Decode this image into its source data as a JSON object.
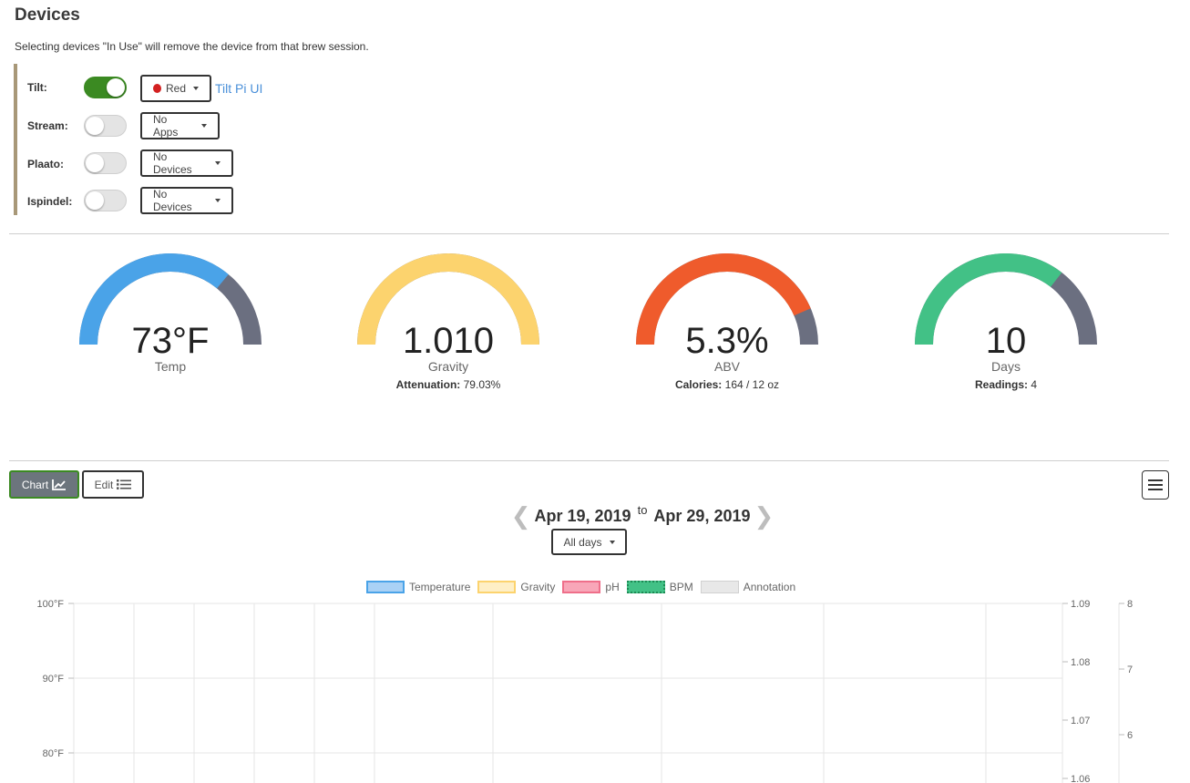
{
  "header": {
    "title": "Devices",
    "subtitle": "Selecting devices \"In Use\" will remove the device from that brew session."
  },
  "devices": [
    {
      "label": "Tilt:",
      "on": true,
      "dropdown": "Red",
      "link": "Tilt Pi UI"
    },
    {
      "label": "Stream:",
      "on": false,
      "dropdown": "No Apps"
    },
    {
      "label": "Plaato:",
      "on": false,
      "dropdown": "No Devices"
    },
    {
      "label": "Ispindel:",
      "on": false,
      "dropdown": "No Devices"
    }
  ],
  "gauges": [
    {
      "value": "73°F",
      "label": "Temp",
      "extra_label": "",
      "extra_value": "",
      "fill": 0.72,
      "color": "#4aa3e8"
    },
    {
      "value": "1.010",
      "label": "Gravity",
      "extra_label": "Attenuation:",
      "extra_value": " 79.03%",
      "fill": 1.0,
      "color": "#fcd36e"
    },
    {
      "value": "5.3%",
      "label": "ABV",
      "extra_label": "Calories:",
      "extra_value": " 164 / 12 oz",
      "fill": 0.87,
      "color": "#ef5b2c"
    },
    {
      "value": "10",
      "label": "Days",
      "extra_label": "Readings:",
      "extra_value": " 4",
      "fill": 0.71,
      "color": "#42c186"
    }
  ],
  "gauge_track_color": "#6b6f80",
  "toolbar": {
    "chart_label": "Chart",
    "edit_label": "Edit"
  },
  "date_range": {
    "start": "Apr 19, 2019",
    "to": "to",
    "end": "Apr 29, 2019"
  },
  "period_dropdown": "All days",
  "chart_data": {
    "type": "line",
    "legend": [
      {
        "name": "Temperature",
        "color": "#4aa3e8"
      },
      {
        "name": "Gravity",
        "color": "#fcd36e"
      },
      {
        "name": "pH",
        "color": "#ef6f8a"
      },
      {
        "name": "BPM",
        "color": "#42c186"
      },
      {
        "name": "Annotation",
        "color": "#d8d8d8"
      }
    ],
    "y_left": {
      "ticks": [
        "100°F",
        "90°F",
        "80°F"
      ],
      "values": [
        100,
        90,
        80
      ]
    },
    "y_right1": {
      "ticks": [
        "1.09",
        "1.08",
        "1.07",
        "1.06"
      ],
      "values": [
        1.09,
        1.08,
        1.07,
        1.06
      ]
    },
    "y_right2": {
      "ticks": [
        "8",
        "7",
        "6"
      ],
      "values": [
        8,
        7,
        6
      ]
    },
    "series": []
  }
}
